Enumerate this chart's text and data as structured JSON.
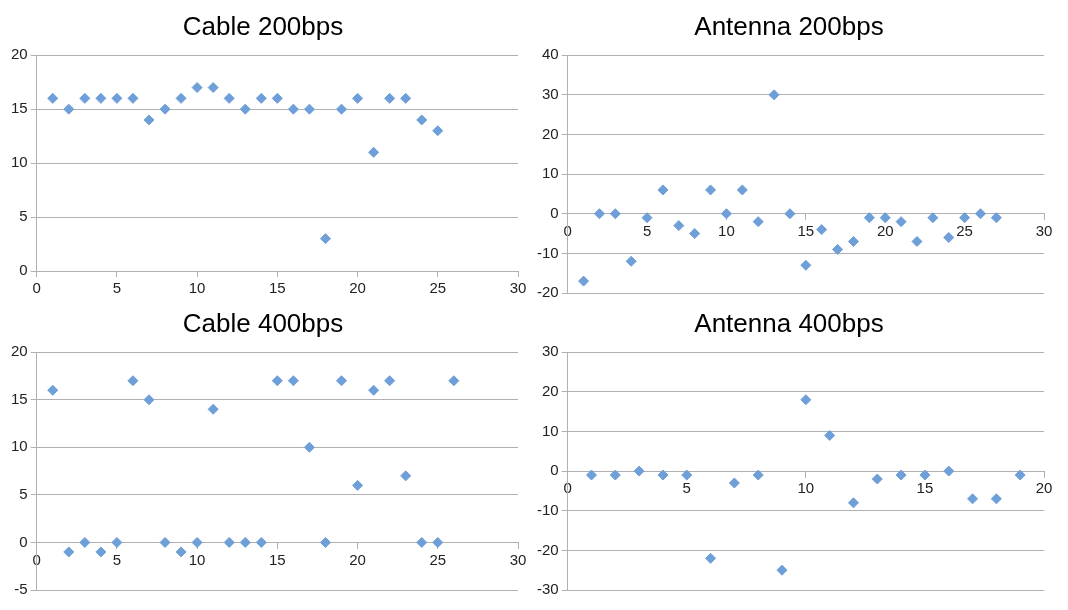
{
  "chart_data": [
    {
      "type": "scatter",
      "title": "Cable 200bps",
      "x": [
        1,
        2,
        3,
        4,
        5,
        6,
        7,
        8,
        9,
        10,
        11,
        12,
        13,
        14,
        15,
        16,
        17,
        18,
        19,
        20,
        21,
        22,
        23,
        24,
        25
      ],
      "values": [
        16,
        15,
        16,
        16,
        16,
        16,
        14,
        15,
        16,
        17,
        17,
        16,
        15,
        16,
        16,
        15,
        15,
        3,
        15,
        16,
        11,
        16,
        16,
        14,
        13
      ],
      "color": "#6f9fd8",
      "marker": "diamond",
      "grid": "y",
      "xlim": [
        0,
        30
      ],
      "xticks": [
        0,
        5,
        10,
        15,
        20,
        25,
        30
      ],
      "ylim": [
        0,
        20
      ],
      "yticks": [
        0,
        5,
        10,
        15,
        20
      ]
    },
    {
      "type": "scatter",
      "title": "Antenna 200bps",
      "x": [
        1,
        2,
        3,
        4,
        5,
        6,
        7,
        8,
        9,
        10,
        11,
        12,
        13,
        14,
        15,
        16,
        17,
        18,
        19,
        20,
        21,
        22,
        23,
        24,
        25,
        26,
        27
      ],
      "values": [
        -17,
        0,
        0,
        -12,
        -1,
        6,
        -3,
        -5,
        6,
        0,
        6,
        -2,
        30,
        0,
        -13,
        -4,
        -9,
        -7,
        -1,
        -1,
        -2,
        -7,
        -1,
        -6,
        -1,
        0,
        -1
      ],
      "color": "#6f9fd8",
      "marker": "diamond",
      "grid": "y",
      "xlim": [
        0,
        30
      ],
      "xticks": [
        0,
        5,
        10,
        15,
        20,
        25,
        30
      ],
      "ylim": [
        -20,
        40
      ],
      "yticks": [
        -20,
        -10,
        0,
        10,
        20,
        30,
        40
      ]
    },
    {
      "type": "scatter",
      "title": "Cable 400bps",
      "x": [
        1,
        2,
        3,
        4,
        5,
        6,
        7,
        8,
        9,
        10,
        11,
        12,
        13,
        14,
        15,
        16,
        17,
        18,
        19,
        20,
        21,
        22,
        23,
        24,
        25,
        26
      ],
      "values": [
        16,
        -1,
        0,
        -1,
        0,
        17,
        15,
        0,
        -1,
        0,
        14,
        0,
        0,
        0,
        17,
        17,
        10,
        0,
        17,
        6,
        16,
        17,
        7,
        0,
        0,
        17
      ],
      "color": "#6f9fd8",
      "marker": "diamond",
      "grid": "y",
      "xlim": [
        0,
        30
      ],
      "xticks": [
        0,
        5,
        10,
        15,
        20,
        25,
        30
      ],
      "ylim": [
        -5,
        20
      ],
      "yticks": [
        -5,
        0,
        5,
        10,
        15,
        20
      ]
    },
    {
      "type": "scatter",
      "title": "Antenna 400bps",
      "x": [
        1,
        2,
        3,
        4,
        5,
        6,
        7,
        8,
        9,
        10,
        11,
        12,
        13,
        14,
        15,
        16,
        17,
        18,
        19
      ],
      "values": [
        -1,
        -1,
        0,
        -1,
        -1,
        -22,
        -3,
        -1,
        -25,
        18,
        9,
        -8,
        -2,
        -1,
        -1,
        0,
        -7,
        -7,
        -1
      ],
      "color": "#6f9fd8",
      "marker": "diamond",
      "grid": "y",
      "xlim": [
        0,
        20
      ],
      "xticks": [
        0,
        5,
        10,
        15,
        20
      ],
      "ylim": [
        -30,
        30
      ],
      "yticks": [
        -30,
        -20,
        -10,
        0,
        10,
        20,
        30
      ]
    }
  ]
}
